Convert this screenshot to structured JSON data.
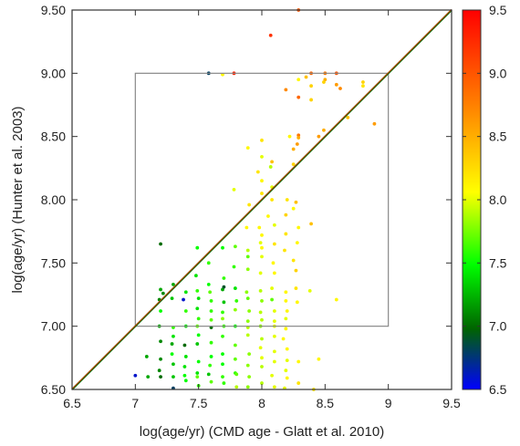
{
  "chart_data": {
    "type": "scatter",
    "title": "",
    "xlabel": "log(age/yr) (CMD age - Glatt et al. 2010)",
    "ylabel": "log(age/yr) (Hunter et al. 2003)",
    "xlim": [
      6.5,
      9.5
    ],
    "ylim": [
      6.5,
      9.5
    ],
    "x_ticks": [
      "6.5",
      "7",
      "7.5",
      "8",
      "8.5",
      "9",
      "9.5"
    ],
    "y_ticks": [
      "6.50",
      "7.00",
      "7.50",
      "8.00",
      "8.50",
      "9.00",
      "9.50"
    ],
    "grid": false,
    "color_scale": {
      "range": [
        6.5,
        9.5
      ],
      "ticks": [
        "6.5",
        "7.0",
        "7.5",
        "8.0",
        "8.5",
        "9.0",
        "9.5"
      ],
      "stops": [
        "#0000ff",
        "#006400",
        "#00ff00",
        "#ffff00",
        "#ff8000",
        "#ff0000"
      ]
    },
    "reference_box": {
      "x": [
        7.0,
        9.0
      ],
      "y": [
        7.0,
        9.0
      ]
    },
    "identity_line": {
      "x": [
        6.5,
        9.5
      ],
      "y": [
        6.5,
        9.5
      ]
    },
    "points": [
      [
        7.58,
        9.0,
        6.8
      ],
      [
        7.69,
        8.99,
        8.1
      ],
      [
        7.78,
        9.0,
        9.3
      ],
      [
        8.07,
        9.3,
        9.2
      ],
      [
        8.29,
        9.5,
        9.0
      ],
      [
        8.39,
        9.0,
        8.9
      ],
      [
        8.5,
        9.0,
        8.8
      ],
      [
        8.59,
        9.0,
        9.0
      ],
      [
        8.29,
        8.95,
        8.1
      ],
      [
        8.35,
        8.97,
        8.4
      ],
      [
        8.39,
        8.9,
        8.3
      ],
      [
        8.5,
        8.95,
        8.5
      ],
      [
        8.49,
        8.93,
        8.3
      ],
      [
        8.59,
        8.91,
        8.6
      ],
      [
        8.62,
        8.88,
        8.7
      ],
      [
        8.19,
        8.87,
        8.7
      ],
      [
        8.8,
        8.93,
        8.3
      ],
      [
        8.8,
        8.9,
        8.2
      ],
      [
        8.29,
        8.81,
        8.9
      ],
      [
        8.39,
        8.79,
        8.3
      ],
      [
        8.68,
        8.65,
        8.4
      ],
      [
        8.89,
        8.6,
        8.6
      ],
      [
        8.49,
        8.55,
        8.5
      ],
      [
        8.45,
        8.5,
        8.6
      ],
      [
        8.29,
        8.51,
        8.8
      ],
      [
        8.29,
        8.49,
        8.5
      ],
      [
        8.22,
        8.5,
        8.1
      ],
      [
        8.28,
        8.44,
        8.6
      ],
      [
        8.0,
        8.47,
        8.2
      ],
      [
        7.89,
        8.41,
        8.1
      ],
      [
        8.25,
        8.4,
        8.5
      ],
      [
        8.0,
        8.34,
        8.0
      ],
      [
        8.08,
        8.3,
        8.4
      ],
      [
        8.07,
        8.26,
        7.9
      ],
      [
        8.25,
        8.28,
        8.3
      ],
      [
        7.97,
        8.22,
        8.2
      ],
      [
        8.0,
        8.15,
        8.1
      ],
      [
        8.08,
        8.1,
        8.0
      ],
      [
        8.0,
        8.05,
        8.2
      ],
      [
        7.78,
        8.08,
        8.0
      ],
      [
        8.2,
        8.0,
        8.2
      ],
      [
        8.08,
        8.0,
        8.2
      ],
      [
        8.25,
        7.93,
        8.1
      ],
      [
        8.27,
        7.98,
        8.4
      ],
      [
        7.9,
        7.96,
        8.2
      ],
      [
        8.05,
        7.87,
        8.1
      ],
      [
        8.19,
        7.88,
        8.3
      ],
      [
        7.98,
        7.78,
        8.1
      ],
      [
        8.1,
        7.8,
        8.0
      ],
      [
        8.29,
        7.78,
        8.1
      ],
      [
        8.39,
        7.81,
        8.4
      ],
      [
        7.88,
        7.78,
        8.1
      ],
      [
        8.0,
        7.72,
        8.1
      ],
      [
        8.19,
        7.73,
        8.2
      ],
      [
        7.99,
        7.66,
        8.0
      ],
      [
        8.1,
        7.65,
        8.2
      ],
      [
        8.28,
        7.66,
        8.1
      ],
      [
        7.89,
        7.6,
        7.9
      ],
      [
        8.0,
        7.62,
        8.1
      ],
      [
        8.18,
        7.6,
        8.2
      ],
      [
        7.2,
        7.65,
        7.0
      ],
      [
        7.49,
        7.62,
        7.5
      ],
      [
        7.69,
        7.62,
        7.5
      ],
      [
        7.79,
        7.63,
        7.7
      ],
      [
        7.89,
        7.55,
        7.7
      ],
      [
        8.0,
        7.55,
        8.0
      ],
      [
        8.09,
        7.5,
        8.1
      ],
      [
        8.25,
        7.52,
        8.2
      ],
      [
        7.58,
        7.5,
        7.6
      ],
      [
        7.78,
        7.47,
        7.6
      ],
      [
        7.89,
        7.45,
        7.8
      ],
      [
        7.99,
        7.42,
        8.0
      ],
      [
        8.1,
        7.42,
        8.1
      ],
      [
        8.27,
        7.44,
        8.3
      ],
      [
        7.48,
        7.4,
        7.4
      ],
      [
        7.7,
        7.38,
        7.6
      ],
      [
        7.58,
        7.33,
        7.5
      ],
      [
        7.3,
        7.33,
        7.2
      ],
      [
        7.2,
        7.29,
        7.2
      ],
      [
        7.22,
        7.26,
        7.1
      ],
      [
        7.4,
        7.27,
        7.4
      ],
      [
        7.49,
        7.28,
        7.6
      ],
      [
        7.59,
        7.27,
        7.7
      ],
      [
        7.69,
        7.29,
        7.2
      ],
      [
        7.7,
        7.31,
        6.9
      ],
      [
        7.79,
        7.3,
        7.4
      ],
      [
        7.88,
        7.27,
        7.8
      ],
      [
        7.99,
        7.28,
        7.9
      ],
      [
        8.08,
        7.3,
        8.0
      ],
      [
        8.19,
        7.27,
        8.1
      ],
      [
        8.27,
        7.3,
        8.2
      ],
      [
        8.38,
        7.28,
        8.0
      ],
      [
        7.19,
        7.21,
        7.1
      ],
      [
        7.29,
        7.22,
        7.3
      ],
      [
        7.38,
        7.21,
        6.6
      ],
      [
        7.5,
        7.22,
        7.4
      ],
      [
        7.6,
        7.2,
        7.6
      ],
      [
        7.7,
        7.19,
        7.3
      ],
      [
        7.8,
        7.2,
        7.6
      ],
      [
        7.89,
        7.22,
        7.7
      ],
      [
        8.0,
        7.2,
        7.8
      ],
      [
        8.08,
        7.21,
        7.7
      ],
      [
        8.19,
        7.2,
        8.1
      ],
      [
        8.28,
        7.19,
        8.1
      ],
      [
        8.59,
        7.21,
        8.1
      ],
      [
        7.2,
        7.12,
        7.5
      ],
      [
        7.4,
        7.12,
        7.6
      ],
      [
        7.49,
        7.14,
        7.4
      ],
      [
        7.6,
        7.12,
        7.6
      ],
      [
        7.69,
        7.11,
        7.6
      ],
      [
        7.79,
        7.13,
        7.8
      ],
      [
        7.9,
        7.12,
        7.8
      ],
      [
        7.99,
        7.11,
        7.9
      ],
      [
        8.1,
        7.12,
        8.0
      ],
      [
        8.2,
        7.12,
        8.1
      ],
      [
        7.5,
        7.06,
        7.6
      ],
      [
        7.6,
        7.05,
        7.7
      ],
      [
        7.69,
        7.06,
        7.8
      ],
      [
        7.89,
        7.04,
        7.8
      ],
      [
        8.0,
        7.05,
        7.9
      ],
      [
        8.1,
        7.04,
        8.0
      ],
      [
        8.19,
        7.06,
        8.0
      ],
      [
        7.19,
        7.0,
        7.2
      ],
      [
        7.3,
        6.99,
        7.6
      ],
      [
        7.4,
        7.0,
        7.4
      ],
      [
        7.49,
        7.0,
        7.7
      ],
      [
        7.6,
        6.99,
        7.0
      ],
      [
        7.7,
        7.0,
        7.6
      ],
      [
        7.79,
        7.0,
        7.5
      ],
      [
        7.89,
        6.99,
        7.9
      ],
      [
        7.99,
        7.0,
        7.8
      ],
      [
        8.1,
        7.0,
        8.0
      ],
      [
        8.19,
        6.98,
        8.1
      ],
      [
        7.3,
        6.92,
        7.4
      ],
      [
        7.5,
        6.93,
        7.5
      ],
      [
        7.69,
        6.92,
        7.6
      ],
      [
        7.89,
        6.93,
        7.9
      ],
      [
        8.0,
        6.9,
        7.9
      ],
      [
        8.1,
        6.92,
        8.0
      ],
      [
        8.17,
        6.9,
        8.1
      ],
      [
        7.2,
        6.88,
        7.1
      ],
      [
        7.29,
        6.86,
        7.2
      ],
      [
        7.39,
        6.85,
        7.0
      ],
      [
        7.49,
        6.86,
        7.3
      ],
      [
        7.6,
        6.87,
        7.6
      ],
      [
        7.79,
        6.85,
        7.7
      ],
      [
        7.99,
        6.83,
        8.0
      ],
      [
        8.1,
        6.8,
        8.0
      ],
      [
        8.2,
        6.82,
        8.1
      ],
      [
        7.29,
        6.78,
        7.5
      ],
      [
        7.69,
        6.78,
        7.5
      ],
      [
        7.9,
        6.78,
        7.8
      ],
      [
        7.4,
        6.76,
        7.4
      ],
      [
        7.6,
        6.76,
        7.5
      ],
      [
        8.0,
        6.75,
        8.0
      ],
      [
        8.2,
        6.73,
        8.0
      ],
      [
        7.09,
        6.76,
        7.2
      ],
      [
        7.2,
        6.74,
        7.1
      ],
      [
        7.5,
        6.72,
        7.5
      ],
      [
        7.79,
        6.74,
        7.7
      ],
      [
        8.1,
        6.72,
        8.0
      ],
      [
        7.3,
        6.7,
        7.3
      ],
      [
        7.39,
        6.68,
        7.4
      ],
      [
        7.59,
        6.69,
        7.6
      ],
      [
        7.69,
        6.7,
        7.5
      ],
      [
        7.89,
        6.69,
        7.8
      ],
      [
        8.0,
        6.68,
        7.9
      ],
      [
        8.29,
        6.72,
        8.1
      ],
      [
        8.45,
        6.74,
        8.1
      ],
      [
        7.19,
        6.65,
        7.1
      ],
      [
        7.49,
        6.63,
        7.4
      ],
      [
        7.58,
        6.62,
        7.3
      ],
      [
        7.79,
        6.63,
        7.6
      ],
      [
        8.19,
        6.65,
        8.0
      ],
      [
        7.0,
        6.61,
        6.6
      ],
      [
        7.1,
        6.6,
        7.2
      ],
      [
        7.2,
        6.6,
        7.0
      ],
      [
        7.3,
        6.6,
        7.3
      ],
      [
        7.39,
        6.61,
        7.5
      ],
      [
        7.49,
        6.6,
        7.7
      ],
      [
        7.69,
        6.6,
        7.6
      ],
      [
        7.8,
        6.62,
        7.7
      ],
      [
        7.9,
        6.6,
        7.8
      ],
      [
        8.08,
        6.61,
        8.0
      ],
      [
        8.2,
        6.59,
        8.1
      ],
      [
        7.4,
        6.57,
        7.5
      ],
      [
        7.6,
        6.56,
        7.7
      ],
      [
        8.0,
        6.55,
        7.9
      ],
      [
        8.29,
        6.55,
        8.2
      ],
      [
        7.5,
        6.53,
        7.6
      ],
      [
        7.7,
        6.55,
        7.6
      ],
      [
        7.89,
        6.52,
        7.8
      ],
      [
        8.1,
        6.52,
        8.0
      ],
      [
        7.3,
        6.51,
        6.8
      ],
      [
        7.8,
        6.52,
        7.9
      ],
      [
        8.18,
        6.51,
        8.0
      ],
      [
        8.41,
        6.5,
        8.2
      ]
    ]
  }
}
